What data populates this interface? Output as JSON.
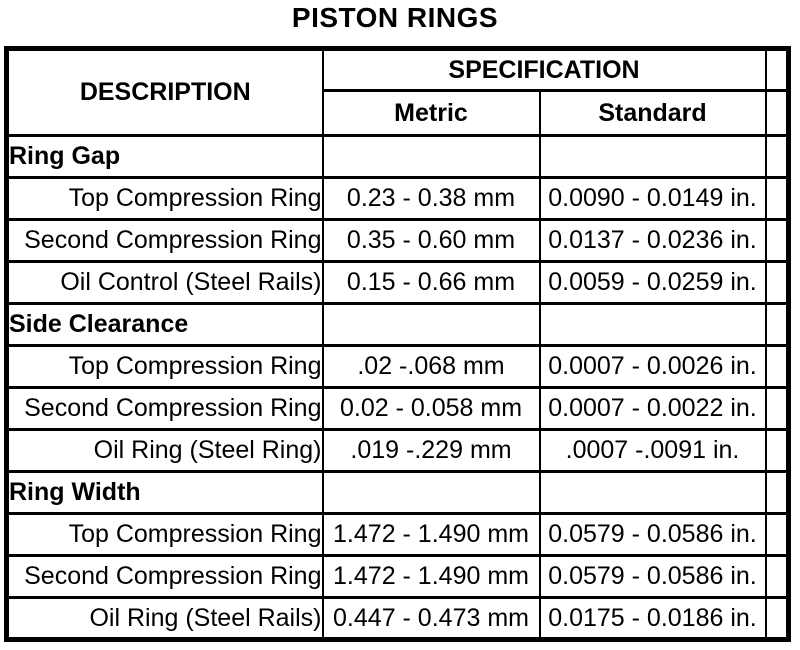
{
  "page_title": "PISTON RINGS",
  "table": {
    "headers": {
      "description": "DESCRIPTION",
      "specification": "SPECIFICATION",
      "metric": "Metric",
      "standard": "Standard"
    },
    "sections": [
      {
        "name": "Ring Gap",
        "rows": [
          {
            "description": "Top Compression Ring",
            "metric": "0.23 - 0.38 mm",
            "standard": "0.0090 - 0.0149 in."
          },
          {
            "description": "Second Compression Ring",
            "metric": "0.35 - 0.60 mm",
            "standard": "0.0137 - 0.0236 in."
          },
          {
            "description": "Oil Control (Steel Rails)",
            "metric": "0.15 - 0.66 mm",
            "standard": "0.0059 - 0.0259 in."
          }
        ]
      },
      {
        "name": "Side Clearance",
        "rows": [
          {
            "description": "Top Compression Ring",
            "metric": ".02 -.068 mm",
            "standard": "0.0007 - 0.0026 in."
          },
          {
            "description": "Second Compression Ring",
            "metric": "0.02 - 0.058 mm",
            "standard": "0.0007 - 0.0022 in."
          },
          {
            "description": "Oil Ring (Steel Ring)",
            "metric": ".019 -.229 mm",
            "standard": ".0007 -.0091 in."
          }
        ]
      },
      {
        "name": "Ring Width",
        "rows": [
          {
            "description": "Top Compression Ring",
            "metric": "1.472 - 1.490 mm",
            "standard": "0.0579 - 0.0586 in."
          },
          {
            "description": "Second Compression Ring",
            "metric": "1.472 - 1.490 mm",
            "standard": "0.0579 - 0.0586 in."
          },
          {
            "description": "Oil Ring (Steel Rails)",
            "metric": "0.447 - 0.473 mm",
            "standard": "0.0175 - 0.0186 in."
          }
        ]
      }
    ]
  }
}
